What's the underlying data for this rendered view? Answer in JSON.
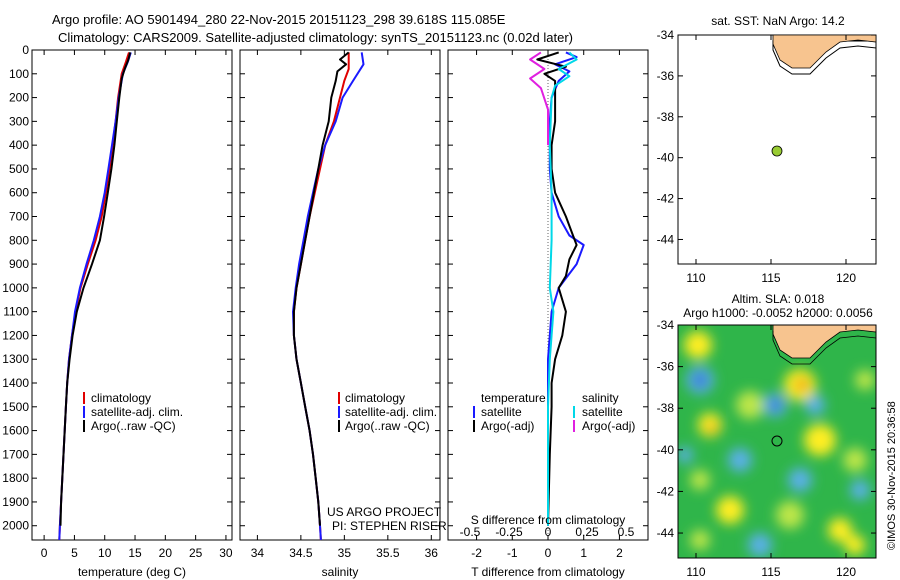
{
  "header": {
    "title_line1": "Argo profile: AO 5901494_280 22-Nov-2015 20151123_298 39.618S 115.085E",
    "title_line2": "Climatology: CARS2009. Satellite-adjusted climatology: synTS_20151123.nc (0.02d later)"
  },
  "depth_axis": {
    "ticks": [
      0,
      100,
      200,
      300,
      400,
      500,
      600,
      700,
      800,
      900,
      1000,
      1100,
      1200,
      1300,
      1400,
      1500,
      1600,
      1700,
      1800,
      1900,
      2000
    ],
    "ylim": [
      0,
      2060
    ]
  },
  "legend_temp": {
    "items": [
      "climatology",
      "satellite-adj. clim.",
      "Argo(..raw -QC)"
    ]
  },
  "legend_sal": {
    "items": [
      "climatology",
      "satellite-adj. clim.",
      "Argo(..raw -QC)"
    ]
  },
  "legend_diff": {
    "col1_title": "temperature",
    "col1_items": [
      "satellite",
      "Argo(-adj)"
    ],
    "col2_title": "salinity",
    "col2_items": [
      "satellite",
      "Argo(-adj)"
    ]
  },
  "credits": {
    "line1": "US ARGO PROJECT",
    "line2": "PI: STEPHEN RISER"
  },
  "map1": {
    "title": "sat. SST: NaN Argo: 14.2",
    "point_color": "#99cc33"
  },
  "map2": {
    "title_line1": "Altim. SLA: 0.018",
    "title_line2": "Argo h1000: -0.0052 h2000: 0.0056"
  },
  "side_stamp": "©IMOS 30-Nov-2015 20:36:58",
  "colors": {
    "climatology": "#e00000",
    "satellite": "#1a1aff",
    "argo": "#000000",
    "sal_satellite": "#00d8e8",
    "sal_argo": "#e020e0",
    "land": "#f7c48f"
  },
  "chart_data": [
    {
      "type": "line",
      "xlabel": "temperature (deg C)",
      "xticks": [
        0,
        5,
        10,
        15,
        20,
        25,
        30
      ],
      "xlim": [
        -2,
        31
      ],
      "series": [
        {
          "name": "climatology",
          "points": [
            [
              14.0,
              10
            ],
            [
              13.5,
              50
            ],
            [
              12.8,
              100
            ],
            [
              12.2,
              200
            ],
            [
              11.8,
              300
            ],
            [
              11.3,
              400
            ],
            [
              10.8,
              500
            ],
            [
              10.2,
              600
            ],
            [
              9.5,
              700
            ],
            [
              8.5,
              800
            ],
            [
              7.2,
              900
            ],
            [
              6.0,
              1000
            ],
            [
              5.2,
              1100
            ],
            [
              4.6,
              1200
            ],
            [
              4.1,
              1300
            ],
            [
              3.8,
              1400
            ],
            [
              3.6,
              1500
            ],
            [
              3.4,
              1600
            ],
            [
              3.2,
              1700
            ],
            [
              3.0,
              1800
            ],
            [
              2.8,
              1900
            ],
            [
              2.6,
              2000
            ],
            [
              2.5,
              2060
            ]
          ]
        },
        {
          "name": "satellite-adj. clim.",
          "points": [
            [
              14.3,
              10
            ],
            [
              13.8,
              50
            ],
            [
              13.0,
              100
            ],
            [
              12.3,
              200
            ],
            [
              11.8,
              300
            ],
            [
              11.2,
              400
            ],
            [
              10.6,
              500
            ],
            [
              10.0,
              600
            ],
            [
              9.2,
              700
            ],
            [
              8.2,
              800
            ],
            [
              7.0,
              900
            ],
            [
              5.9,
              1000
            ],
            [
              5.1,
              1100
            ],
            [
              4.6,
              1200
            ],
            [
              4.1,
              1300
            ],
            [
              3.8,
              1400
            ],
            [
              3.6,
              1500
            ],
            [
              3.4,
              1600
            ],
            [
              3.2,
              1700
            ],
            [
              3.0,
              1800
            ],
            [
              2.8,
              1900
            ],
            [
              2.6,
              2000
            ],
            [
              2.5,
              2060
            ]
          ]
        },
        {
          "name": "Argo(..raw -QC)",
          "points": [
            [
              14.2,
              10
            ],
            [
              13.9,
              40
            ],
            [
              13.3,
              80
            ],
            [
              12.8,
              120
            ],
            [
              12.4,
              200
            ],
            [
              12.0,
              300
            ],
            [
              11.6,
              400
            ],
            [
              11.1,
              500
            ],
            [
              10.5,
              600
            ],
            [
              9.9,
              700
            ],
            [
              9.2,
              800
            ],
            [
              7.9,
              900
            ],
            [
              6.5,
              1000
            ],
            [
              5.4,
              1100
            ],
            [
              4.7,
              1200
            ],
            [
              4.2,
              1300
            ],
            [
              3.8,
              1400
            ],
            [
              3.6,
              1500
            ],
            [
              3.4,
              1600
            ],
            [
              3.2,
              1700
            ],
            [
              3.0,
              1800
            ],
            [
              2.8,
              1900
            ],
            [
              2.7,
              2000
            ]
          ]
        }
      ]
    },
    {
      "type": "line",
      "xlabel": "salinity",
      "xticks": [
        34,
        34.5,
        35,
        35.5,
        36
      ],
      "xlim": [
        33.8,
        36.1
      ],
      "series": [
        {
          "name": "climatology",
          "points": [
            [
              35.05,
              10
            ],
            [
              35.05,
              80
            ],
            [
              35.0,
              130
            ],
            [
              34.95,
              200
            ],
            [
              34.88,
              300
            ],
            [
              34.78,
              400
            ],
            [
              34.72,
              500
            ],
            [
              34.66,
              600
            ],
            [
              34.6,
              700
            ],
            [
              34.55,
              800
            ],
            [
              34.5,
              900
            ],
            [
              34.45,
              1000
            ],
            [
              34.42,
              1100
            ],
            [
              34.42,
              1200
            ],
            [
              34.45,
              1300
            ],
            [
              34.5,
              1400
            ],
            [
              34.55,
              1500
            ],
            [
              34.6,
              1600
            ],
            [
              34.64,
              1700
            ],
            [
              34.67,
              1800
            ],
            [
              34.7,
              1900
            ],
            [
              34.72,
              2000
            ],
            [
              34.73,
              2060
            ]
          ]
        },
        {
          "name": "satellite-adj. clim.",
          "points": [
            [
              35.2,
              10
            ],
            [
              35.22,
              60
            ],
            [
              35.1,
              130
            ],
            [
              34.98,
              200
            ],
            [
              34.9,
              300
            ],
            [
              34.78,
              400
            ],
            [
              34.7,
              500
            ],
            [
              34.64,
              600
            ],
            [
              34.58,
              700
            ],
            [
              34.53,
              800
            ],
            [
              34.48,
              900
            ],
            [
              34.44,
              1000
            ],
            [
              34.41,
              1100
            ],
            [
              34.42,
              1200
            ],
            [
              34.45,
              1300
            ],
            [
              34.5,
              1400
            ],
            [
              34.55,
              1500
            ],
            [
              34.6,
              1600
            ],
            [
              34.64,
              1700
            ],
            [
              34.67,
              1800
            ],
            [
              34.7,
              1900
            ],
            [
              34.72,
              2000
            ],
            [
              34.73,
              2060
            ]
          ]
        },
        {
          "name": "Argo(..raw -QC)",
          "points": [
            [
              35.05,
              10
            ],
            [
              34.95,
              40
            ],
            [
              35.02,
              60
            ],
            [
              34.92,
              90
            ],
            [
              34.9,
              130
            ],
            [
              34.85,
              200
            ],
            [
              34.82,
              300
            ],
            [
              34.75,
              400
            ],
            [
              34.7,
              500
            ],
            [
              34.65,
              600
            ],
            [
              34.6,
              700
            ],
            [
              34.55,
              800
            ],
            [
              34.5,
              900
            ],
            [
              34.45,
              1000
            ],
            [
              34.42,
              1100
            ],
            [
              34.42,
              1200
            ],
            [
              34.45,
              1300
            ],
            [
              34.5,
              1400
            ],
            [
              34.55,
              1500
            ],
            [
              34.6,
              1600
            ],
            [
              34.64,
              1700
            ],
            [
              34.67,
              1800
            ],
            [
              34.7,
              1900
            ],
            [
              34.72,
              2000
            ]
          ]
        }
      ]
    },
    {
      "type": "line",
      "xlabel": "T difference from climatology",
      "xlabel_top": "S difference from climatology",
      "xticks": [
        -2,
        -1,
        0,
        1,
        2
      ],
      "xticks_top": [
        -0.5,
        -0.25,
        0,
        0.25,
        0.5
      ],
      "xlim": [
        -2.8,
        2.8
      ],
      "series": [
        {
          "name": "temperature satellite",
          "points": [
            [
              0.5,
              10
            ],
            [
              0.8,
              30
            ],
            [
              0.2,
              60
            ],
            [
              0.6,
              90
            ],
            [
              0.3,
              130
            ],
            [
              0.1,
              200
            ],
            [
              0.05,
              300
            ],
            [
              0.05,
              500
            ],
            [
              0.1,
              600
            ],
            [
              0.3,
              700
            ],
            [
              0.6,
              780
            ],
            [
              1.0,
              820
            ],
            [
              0.8,
              900
            ],
            [
              0.3,
              1000
            ],
            [
              0.1,
              1100
            ],
            [
              0.05,
              1200
            ],
            [
              0,
              1300
            ],
            [
              0,
              1500
            ],
            [
              0,
              2000
            ]
          ]
        },
        {
          "name": "temperature Argo(-adj)",
          "points": [
            [
              0.3,
              10
            ],
            [
              -0.3,
              40
            ],
            [
              0.5,
              70
            ],
            [
              -0.1,
              100
            ],
            [
              0.2,
              130
            ],
            [
              0.2,
              200
            ],
            [
              0.2,
              300
            ],
            [
              0.1,
              400
            ],
            [
              0.1,
              500
            ],
            [
              0.2,
              600
            ],
            [
              0.5,
              700
            ],
            [
              0.7,
              780
            ],
            [
              0.8,
              820
            ],
            [
              0.6,
              880
            ],
            [
              0.5,
              950
            ],
            [
              0.3,
              1000
            ],
            [
              0.5,
              1100
            ],
            [
              0.4,
              1200
            ],
            [
              0.2,
              1300
            ],
            [
              0.1,
              1400
            ],
            [
              0.1,
              1500
            ],
            [
              0.05,
              1700
            ],
            [
              0,
              2000
            ]
          ]
        },
        {
          "name": "salinity satellite",
          "points": [
            [
              0.6,
              10
            ],
            [
              0.8,
              40
            ],
            [
              0.3,
              80
            ],
            [
              0.6,
              110
            ],
            [
              0.2,
              150
            ],
            [
              0.1,
              200
            ],
            [
              0.05,
              400
            ],
            [
              0.1,
              600
            ],
            [
              0.1,
              800
            ],
            [
              0.05,
              1000
            ],
            [
              0.15,
              1100
            ],
            [
              0.1,
              1200
            ],
            [
              0.05,
              1300
            ],
            [
              0,
              1500
            ],
            [
              0,
              2000
            ]
          ]
        },
        {
          "name": "salinity Argo(-adj)",
          "points": [
            [
              -0.2,
              10
            ],
            [
              -0.5,
              40
            ],
            [
              -0.1,
              80
            ],
            [
              -0.5,
              120
            ],
            [
              -0.2,
              160
            ],
            [
              0,
              250
            ],
            [
              0,
              400
            ]
          ]
        }
      ]
    }
  ]
}
